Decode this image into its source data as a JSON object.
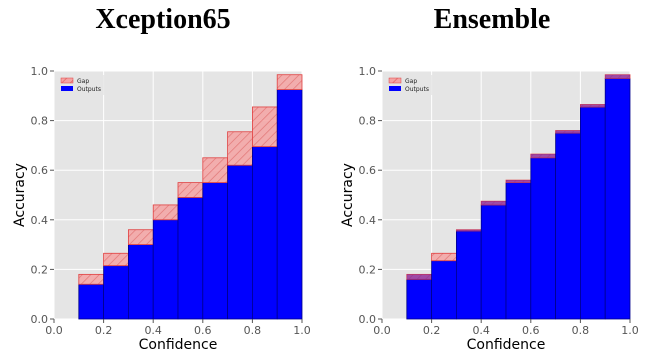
{
  "chart_data": [
    {
      "type": "bar",
      "title": "Xception65",
      "xlabel": "Confidence",
      "ylabel": "Accuracy",
      "xlim": [
        0,
        1
      ],
      "ylim": [
        0,
        1
      ],
      "x_ticks": [
        "0.0",
        "0.2",
        "0.4",
        "0.6",
        "0.8",
        "1.0"
      ],
      "y_ticks": [
        "0.0",
        "0.2",
        "0.4",
        "0.6",
        "0.8",
        "1.0"
      ],
      "grid": true,
      "legend_position": "top-left",
      "bin_edges": [
        0.1,
        0.2,
        0.3,
        0.4,
        0.5,
        0.6,
        0.7,
        0.8,
        0.9,
        1.0
      ],
      "series": [
        {
          "name": "Gap",
          "values": [
            0.18,
            0.265,
            0.36,
            0.46,
            0.55,
            0.65,
            0.755,
            0.855,
            0.985
          ],
          "color": "#f4a3a3"
        },
        {
          "name": "Outputs",
          "values": [
            0.14,
            0.215,
            0.3,
            0.4,
            0.49,
            0.55,
            0.62,
            0.695,
            0.925
          ],
          "color": "#0000ff"
        }
      ]
    },
    {
      "type": "bar",
      "title": "Ensemble",
      "xlabel": "Confidence",
      "ylabel": "Accuracy",
      "xlim": [
        0,
        1
      ],
      "ylim": [
        0,
        1
      ],
      "x_ticks": [
        "0.0",
        "0.2",
        "0.4",
        "0.6",
        "0.8",
        "1.0"
      ],
      "y_ticks": [
        "0.0",
        "0.2",
        "0.4",
        "0.6",
        "0.8",
        "1.0"
      ],
      "grid": true,
      "legend_position": "top-left",
      "bin_edges": [
        0.1,
        0.2,
        0.3,
        0.4,
        0.5,
        0.6,
        0.7,
        0.8,
        0.9,
        1.0
      ],
      "series": [
        {
          "name": "Gap",
          "values": [
            0.18,
            0.265,
            0.36,
            0.475,
            0.56,
            0.665,
            0.76,
            0.865,
            0.985
          ],
          "color": "#f4a3a3"
        },
        {
          "name": "Outputs",
          "values": [
            0.16,
            0.235,
            0.355,
            0.46,
            0.55,
            0.65,
            0.75,
            0.855,
            0.97
          ],
          "color": "#0000ff"
        }
      ]
    }
  ]
}
